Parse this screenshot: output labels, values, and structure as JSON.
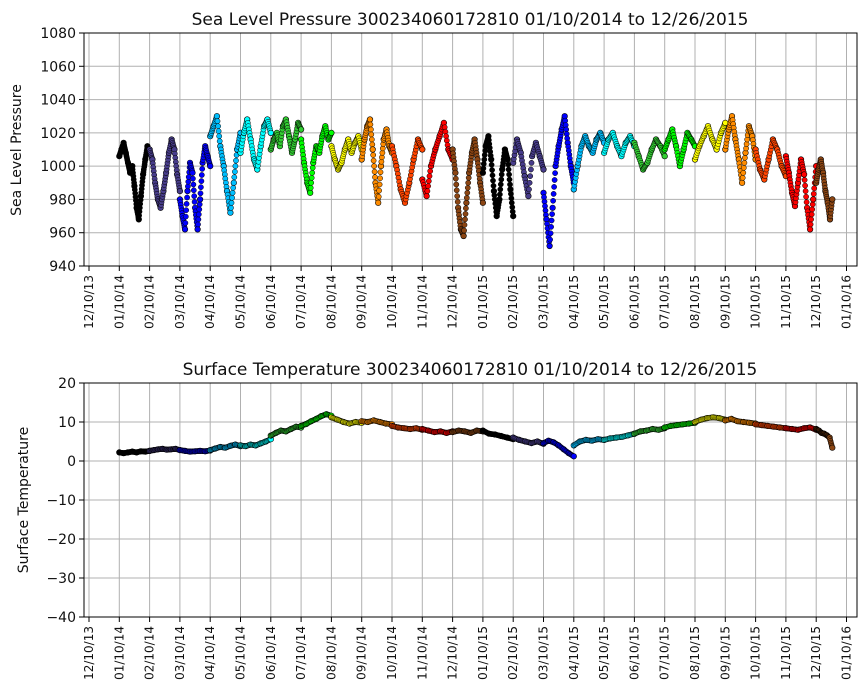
{
  "chart_data": [
    {
      "type": "scatter",
      "title": "Sea Level Pressure 300234060172810  01/10/2014 to 12/26/2015",
      "ylabel": "Sea Level Pressure",
      "xlabel": "",
      "ylim": [
        940,
        1080
      ],
      "yticks": [
        940,
        960,
        980,
        1000,
        1020,
        1040,
        1060,
        1080
      ],
      "grid": true,
      "xticks": [
        "12/10/13",
        "01/10/14",
        "02/10/14",
        "03/10/14",
        "04/10/14",
        "05/10/14",
        "06/10/14",
        "07/10/14",
        "08/10/14",
        "09/10/14",
        "10/10/14",
        "11/10/14",
        "12/10/14",
        "01/10/15",
        "02/10/15",
        "03/10/15",
        "04/10/15",
        "05/10/15",
        "06/10/15",
        "07/10/15",
        "08/10/15",
        "09/10/15",
        "10/10/15",
        "11/10/15",
        "12/10/15",
        "01/10/16"
      ],
      "series_colors": [
        "#000000",
        "#483d8b",
        "#0000ff",
        "#00bfff",
        "#00ffff",
        "#32cd32",
        "#00ff00",
        "#ffff00",
        "#ff8c00",
        "#ff4500",
        "#ff0000",
        "#8b4513"
      ],
      "series": [
        {
          "month": "01/14",
          "color": "#000000",
          "y": [
            1006,
            1010,
            1014,
            1008,
            1002,
            996,
            1000,
            988,
            975,
            968,
            982,
            995,
            1004,
            1012,
            1008
          ]
        },
        {
          "month": "02/14",
          "color": "#483d8b",
          "y": [
            1010,
            1004,
            990,
            980,
            975,
            985,
            996,
            1008,
            1016,
            1010,
            995,
            985
          ]
        },
        {
          "month": "03/14",
          "color": "#0000ff",
          "y": [
            980,
            970,
            962,
            985,
            1002,
            996,
            975,
            962,
            980,
            1002,
            1012,
            1006,
            1000
          ]
        },
        {
          "month": "04/14",
          "color": "#00bfff",
          "y": [
            1018,
            1024,
            1030,
            1012,
            1000,
            985,
            972,
            990,
            1010,
            1020
          ]
        },
        {
          "month": "05/14",
          "color": "#00ffff",
          "y": [
            1008,
            1020,
            1028,
            1016,
            1004,
            998,
            1012,
            1024,
            1028,
            1020
          ]
        },
        {
          "month": "06/14",
          "color": "#32cd32",
          "y": [
            1010,
            1016,
            1020,
            1012,
            1024,
            1028,
            1018,
            1008,
            1016,
            1026,
            1022
          ]
        },
        {
          "month": "07/14",
          "color": "#00ff00",
          "y": [
            1016,
            1002,
            990,
            984,
            1002,
            1012,
            1008,
            1018,
            1024,
            1016,
            1020
          ]
        },
        {
          "month": "08/14",
          "color": "#ffff00",
          "y": [
            1012,
            1004,
            998,
            1002,
            1010,
            1016,
            1008,
            1014,
            1018,
            1010
          ]
        },
        {
          "month": "09/14",
          "color": "#ff8c00",
          "y": [
            1004,
            1016,
            1024,
            1028,
            1010,
            990,
            978,
            1000,
            1016,
            1022,
            1012,
            1008
          ]
        },
        {
          "month": "10/14",
          "color": "#ff4500",
          "y": [
            1012,
            1000,
            986,
            978,
            990,
            1004,
            1016,
            1010
          ]
        },
        {
          "month": "11/14",
          "color": "#ff0000",
          "y": [
            992,
            982,
            1000,
            1010,
            1018,
            1026,
            1010,
            1004
          ]
        },
        {
          "month": "12/14",
          "color": "#8b4513",
          "y": [
            1010,
            996,
            975,
            962,
            958,
            978,
            996,
            1008,
            1016,
            1004,
            990,
            978
          ]
        },
        {
          "month": "01/15",
          "color": "#000000",
          "y": [
            996,
            1012,
            1018,
            1004,
            985,
            970,
            980,
            998,
            1010,
            1004,
            986,
            970
          ]
        },
        {
          "month": "02/15",
          "color": "#483d8b",
          "y": [
            1002,
            1016,
            1008,
            994,
            982,
            1006,
            1014,
            1006,
            998
          ]
        },
        {
          "month": "03/15",
          "color": "#0000ff",
          "y": [
            984,
            968,
            952,
            975,
            1000,
            1012,
            1022,
            1030,
            1014,
            1000,
            990
          ]
        },
        {
          "month": "04/15",
          "color": "#00bfff",
          "y": [
            986,
            1000,
            1012,
            1018,
            1012,
            1008,
            1016,
            1020,
            1014
          ]
        },
        {
          "month": "05/15",
          "color": "#00ffff",
          "y": [
            1008,
            1016,
            1020,
            1012,
            1006,
            1014,
            1018,
            1012
          ]
        },
        {
          "month": "06/15",
          "color": "#32cd32",
          "y": [
            1014,
            1006,
            998,
            1002,
            1010,
            1016,
            1012,
            1006
          ]
        },
        {
          "month": "07/15",
          "color": "#00ff00",
          "y": [
            1010,
            1016,
            1022,
            1012,
            1000,
            1010,
            1020,
            1016,
            1012
          ]
        },
        {
          "month": "08/15",
          "color": "#ffff00",
          "y": [
            1004,
            1012,
            1018,
            1024,
            1016,
            1010,
            1020,
            1026
          ]
        },
        {
          "month": "09/15",
          "color": "#ff8c00",
          "y": [
            1010,
            1022,
            1030,
            1016,
            1004,
            990,
            1008,
            1024,
            1018,
            1004
          ]
        },
        {
          "month": "10/15",
          "color": "#ff4500",
          "y": [
            1010,
            998,
            992,
            1004,
            1016,
            1010,
            1000,
            994
          ]
        },
        {
          "month": "11/15",
          "color": "#ff0000",
          "y": [
            1006,
            996,
            984,
            976,
            990,
            1004,
            995,
            975,
            962,
            980,
            1000
          ]
        },
        {
          "month": "12/15",
          "color": "#8b4513",
          "y": [
            990,
            998,
            1004,
            996,
            985,
            978,
            968,
            980
          ]
        }
      ]
    },
    {
      "type": "scatter",
      "title": "Surface Temperature 300234060172810  01/10/2014 to 12/26/2015",
      "ylabel": "Surface Temperature",
      "xlabel": "",
      "ylim": [
        -40,
        20
      ],
      "yticks": [
        -40,
        -30,
        -20,
        -10,
        0,
        10,
        20
      ],
      "grid": true,
      "xticks": [
        "12/10/13",
        "01/10/14",
        "02/10/14",
        "03/10/14",
        "04/10/14",
        "05/10/14",
        "06/10/14",
        "07/10/14",
        "08/10/14",
        "09/10/14",
        "10/10/14",
        "11/10/14",
        "12/10/14",
        "01/10/15",
        "02/10/15",
        "03/10/15",
        "04/10/15",
        "05/10/15",
        "06/10/15",
        "07/10/15",
        "08/10/15",
        "09/10/15",
        "10/10/15",
        "11/10/15",
        "12/10/15",
        "01/10/16"
      ],
      "series": [
        {
          "month": "01/14",
          "color": "#000000",
          "y": [
            2.2,
            2.0,
            2.2,
            2.4,
            2.2,
            2.5,
            2.4,
            2.6
          ]
        },
        {
          "month": "02/14",
          "color": "#483d8b",
          "y": [
            2.6,
            2.8,
            3.0,
            3.1,
            2.9,
            3.0,
            3.1,
            2.8
          ]
        },
        {
          "month": "03/14",
          "color": "#0000ff",
          "y": [
            2.8,
            2.6,
            2.4,
            2.5,
            2.6,
            2.5,
            2.7
          ]
        },
        {
          "month": "04/14",
          "color": "#00bfff",
          "y": [
            2.8,
            3.2,
            3.6,
            3.4,
            3.9,
            4.2,
            3.8
          ]
        },
        {
          "month": "05/14",
          "color": "#00ffff",
          "y": [
            4.0,
            3.8,
            4.2,
            4.0,
            4.5,
            5.0,
            5.6
          ]
        },
        {
          "month": "06/14",
          "color": "#32cd32",
          "y": [
            6.5,
            7.2,
            7.8,
            7.6,
            8.2,
            8.8,
            8.6
          ]
        },
        {
          "month": "07/14",
          "color": "#00ff00",
          "y": [
            9.0,
            9.5,
            10.2,
            10.8,
            11.5,
            12.0,
            11.6
          ]
        },
        {
          "month": "08/14",
          "color": "#ffff00",
          "y": [
            11.2,
            10.6,
            10.0,
            9.6,
            10.0,
            9.8
          ]
        },
        {
          "month": "09/14",
          "color": "#ff8c00",
          "y": [
            10.2,
            10.0,
            10.4,
            10.0,
            9.6,
            9.4
          ]
        },
        {
          "month": "10/14",
          "color": "#ff4500",
          "y": [
            9.0,
            8.6,
            8.4,
            8.2,
            8.4,
            8.0
          ]
        },
        {
          "month": "11/14",
          "color": "#ff0000",
          "y": [
            8.2,
            7.8,
            7.4,
            7.6,
            7.2,
            7.6
          ]
        },
        {
          "month": "12/14",
          "color": "#8b4513",
          "y": [
            7.4,
            7.8,
            7.6,
            7.2,
            7.8,
            7.6
          ]
        },
        {
          "month": "01/15",
          "color": "#000000",
          "y": [
            7.8,
            7.0,
            6.8,
            6.4,
            6.0,
            5.6
          ]
        },
        {
          "month": "02/15",
          "color": "#483d8b",
          "y": [
            6.0,
            5.4,
            5.0,
            4.6,
            5.0,
            4.4
          ]
        },
        {
          "month": "03/15",
          "color": "#0000ff",
          "y": [
            4.6,
            5.2,
            4.8,
            4.0,
            3.0,
            2.0,
            1.2
          ]
        },
        {
          "month": "04/15",
          "color": "#00bfff",
          "y": [
            4.0,
            5.0,
            5.4,
            5.2,
            5.6,
            5.4
          ]
        },
        {
          "month": "05/15",
          "color": "#00ffff",
          "y": [
            5.4,
            5.8,
            6.0,
            6.2,
            6.6,
            7.0
          ]
        },
        {
          "month": "06/15",
          "color": "#32cd32",
          "y": [
            7.0,
            7.6,
            7.8,
            8.2,
            8.0,
            8.4
          ]
        },
        {
          "month": "07/15",
          "color": "#00ff00",
          "y": [
            8.6,
            9.0,
            9.2,
            9.4,
            9.6,
            9.8
          ]
        },
        {
          "month": "08/15",
          "color": "#ffff00",
          "y": [
            10.0,
            10.6,
            11.0,
            11.2,
            11.0,
            10.6
          ]
        },
        {
          "month": "09/15",
          "color": "#ff8c00",
          "y": [
            10.4,
            10.8,
            10.2,
            10.0,
            9.8,
            9.6
          ]
        },
        {
          "month": "10/15",
          "color": "#ff4500",
          "y": [
            9.4,
            9.2,
            9.0,
            8.8,
            8.6,
            8.4
          ]
        },
        {
          "month": "11/15",
          "color": "#ff0000",
          "y": [
            8.4,
            8.2,
            8.0,
            8.4,
            8.6,
            8.0
          ]
        },
        {
          "month": "12/15",
          "color": "#8b4513",
          "y": [
            8.2,
            7.8,
            7.2,
            7.0,
            6.6,
            6.0,
            3.4
          ]
        }
      ]
    }
  ]
}
